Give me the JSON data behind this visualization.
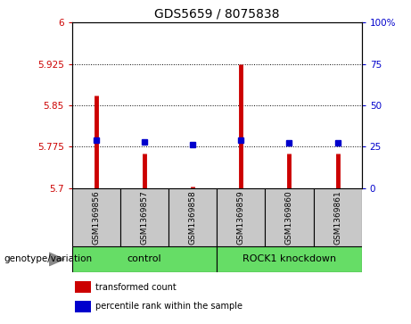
{
  "title": "GDS5659 / 8075838",
  "samples": [
    "GSM1369856",
    "GSM1369857",
    "GSM1369858",
    "GSM1369859",
    "GSM1369860",
    "GSM1369861"
  ],
  "red_values": [
    5.868,
    5.762,
    5.703,
    5.925,
    5.762,
    5.762
  ],
  "blue_values_left": [
    5.787,
    5.783,
    5.779,
    5.787,
    5.782,
    5.782
  ],
  "ylim_left": [
    5.7,
    6.0
  ],
  "ylim_right": [
    0,
    100
  ],
  "left_ticks": [
    5.7,
    5.775,
    5.85,
    5.925,
    6.0
  ],
  "left_tick_labels": [
    "5.7",
    "5.775",
    "5.85",
    "5.925",
    "6"
  ],
  "right_ticks": [
    0,
    25,
    50,
    75,
    100
  ],
  "right_tick_labels": [
    "0",
    "25",
    "50",
    "75",
    "100%"
  ],
  "bar_color": "#CC0000",
  "dot_color": "#0000CC",
  "bg_color": "#FFFFFF",
  "sample_box_color": "#C8C8C8",
  "group_color": "#66DD66",
  "legend_red_label": "transformed count",
  "legend_blue_label": "percentile rank within the sample",
  "genotype_label": "genotype/variation",
  "group_label_control": "control",
  "group_label_knockdown": "ROCK1 knockdown",
  "left_axis_color": "#CC0000",
  "right_axis_color": "#0000CC",
  "title_fontsize": 10,
  "tick_fontsize": 7.5,
  "sample_fontsize": 6.5,
  "group_fontsize": 8,
  "legend_fontsize": 7,
  "genotype_fontsize": 7.5
}
